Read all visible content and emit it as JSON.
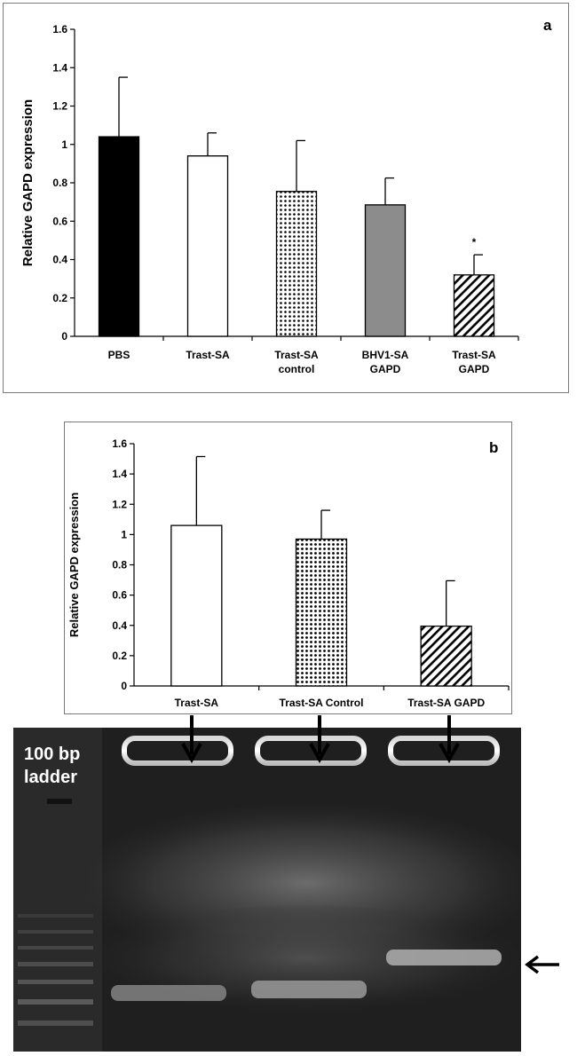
{
  "chart_data": [
    {
      "type": "bar",
      "panel_label": "a",
      "ylabel": "Relative GAPD expression",
      "xlabel": "",
      "ylim": [
        0,
        1.6
      ],
      "yticks": [
        "0",
        "0.2",
        "0.4",
        "0.6",
        "0.8",
        "1",
        "1.2",
        "1.4",
        "1.6"
      ],
      "categories": [
        [
          "PBS"
        ],
        [
          "Trast-SA"
        ],
        [
          "Trast-SA",
          "control"
        ],
        [
          "BHV1-SA",
          "GAPD"
        ],
        [
          "Trast-SA",
          "GAPD"
        ]
      ],
      "values": [
        1.04,
        0.94,
        0.755,
        0.685,
        0.32
      ],
      "errors": [
        0.31,
        0.12,
        0.265,
        0.14,
        0.105
      ],
      "fills": [
        "solid-black",
        "white",
        "dots",
        "gray",
        "diagonal-hatch"
      ],
      "annotations": [
        "",
        "",
        "",
        "",
        "*"
      ]
    },
    {
      "type": "bar",
      "panel_label": "b",
      "ylabel": "Relative GAPD expression",
      "xlabel": "",
      "ylim": [
        0,
        1.6
      ],
      "yticks": [
        "0",
        "0.2",
        "0.4",
        "0.6",
        "0.8",
        "1",
        "1.2",
        "1.4",
        "1.6"
      ],
      "categories": [
        [
          "Trast-SA"
        ],
        [
          "Trast-SA Control"
        ],
        [
          "Trast-SA GAPD"
        ]
      ],
      "values": [
        1.06,
        0.97,
        0.395
      ],
      "errors": [
        0.455,
        0.19,
        0.3
      ],
      "fills": [
        "white",
        "dots",
        "diagonal-hatch"
      ],
      "annotations": [
        "",
        "",
        ""
      ]
    }
  ],
  "gel": {
    "ladder_label_line1": "100 bp",
    "ladder_label_line2": "ladder",
    "lane_arrows": 3,
    "band_arrow": "right-side arrow pointing to GAPD band in Trast-SA GAPD lane"
  }
}
